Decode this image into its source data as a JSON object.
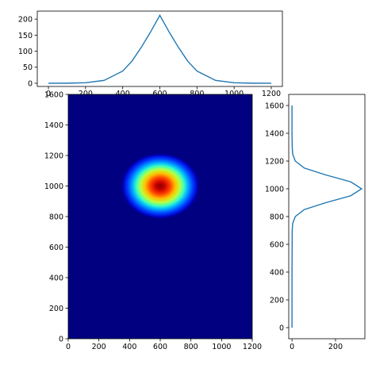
{
  "chart_data": [
    {
      "type": "line",
      "panel": "top-profile",
      "title": "",
      "xlabel": "",
      "ylabel": "",
      "xlim": [
        -60,
        1260
      ],
      "ylim": [
        -10,
        225
      ],
      "xticks": [
        0,
        200,
        400,
        600,
        800,
        1000,
        1200
      ],
      "xtick_labels": [
        "0",
        "200",
        "400",
        "600",
        "800",
        "1000",
        "1200"
      ],
      "yticks": [
        0,
        50,
        100,
        150,
        200
      ],
      "ytick_labels": [
        "0",
        "50",
        "100",
        "150",
        "200"
      ],
      "grid": false,
      "series": [
        {
          "color": "#1f77b4",
          "x": [
            0,
            100,
            200,
            300,
            400,
            450,
            500,
            550,
            600,
            650,
            700,
            750,
            800,
            900,
            1000,
            1100,
            1200
          ],
          "y": [
            0,
            0.2,
            1.6,
            9,
            38,
            69,
            112,
            160,
            212,
            160,
            112,
            69,
            38,
            9,
            1.6,
            0.2,
            0
          ]
        }
      ]
    },
    {
      "type": "heatmap",
      "panel": "main-image",
      "title": "",
      "xlabel": "",
      "ylabel": "",
      "xlim": [
        0,
        1200
      ],
      "ylim": [
        0,
        1600
      ],
      "xticks": [
        0,
        200,
        400,
        600,
        800,
        1000,
        1200
      ],
      "xtick_labels": [
        "0",
        "200",
        "400",
        "600",
        "800",
        "1000",
        "1200"
      ],
      "yticks": [
        0,
        200,
        400,
        600,
        800,
        1000,
        1200,
        1400,
        1600
      ],
      "ytick_labels": [
        "0",
        "200",
        "400",
        "600",
        "800",
        "1000",
        "1200",
        "1400",
        "1600"
      ],
      "colormap": "jet",
      "peak_center": [
        600,
        1000
      ],
      "grid": false
    },
    {
      "type": "line",
      "panel": "right-profile",
      "title": "",
      "xlabel": "",
      "ylabel": "",
      "xlim": [
        -15,
        335
      ],
      "ylim": [
        -80,
        1680
      ],
      "xticks": [
        0,
        200
      ],
      "xtick_labels": [
        "0",
        "200"
      ],
      "yticks": [
        0,
        200,
        400,
        600,
        800,
        1000,
        1200,
        1400,
        1600
      ],
      "ytick_labels": [
        "0",
        "200",
        "400",
        "600",
        "800",
        "1000",
        "1200",
        "1400",
        "1600"
      ],
      "grid": false,
      "series": [
        {
          "color": "#1f77b4",
          "x": [
            0,
            0,
            1,
            3,
            15,
            56,
            155,
            270,
            320,
            270,
            155,
            56,
            15,
            3,
            1,
            0,
            0
          ],
          "y": [
            0,
            400,
            700,
            750,
            800,
            850,
            900,
            950,
            1000,
            1050,
            1100,
            1150,
            1200,
            1250,
            1300,
            1400,
            1600
          ]
        }
      ]
    }
  ]
}
